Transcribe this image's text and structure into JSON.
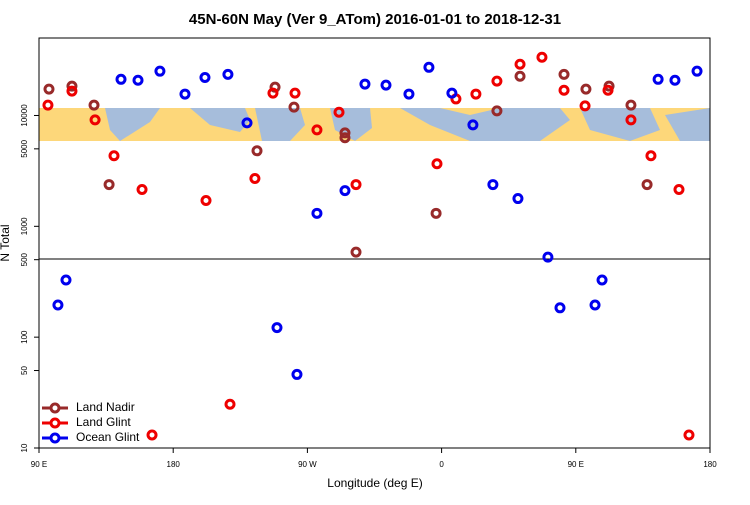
{
  "chart_data": {
    "type": "scatter",
    "title": "45N-60N May (Ver 9_ATom)   2016-01-01 to 2018-12-31",
    "x_label": "Longitude (deg E)",
    "y_label": "N Total",
    "xlim": [
      90,
      540
    ],
    "ylim": [
      10,
      50000
    ],
    "log_y": true,
    "legend": "lower left",
    "xticks": [
      {
        "value": 90,
        "label": "90 E"
      },
      {
        "value": 180,
        "label": "180"
      },
      {
        "value": 270,
        "label": "90 W"
      },
      {
        "value": 360,
        "label": "0"
      },
      {
        "value": 450,
        "label": "90 E"
      },
      {
        "value": 540,
        "label": "180"
      }
    ],
    "yticks": [
      10,
      50,
      100,
      500,
      1000,
      5000,
      10000
    ],
    "series": [
      {
        "name": "Land Nadir",
        "color": "#982a2a",
        "x": [
          96.7,
          112.1,
          126.9,
          137,
          248.3,
          236.2,
          261,
          295.2,
          295.2,
          302.6,
          356.3,
          397.1,
          412.6,
          442.1,
          456.8,
          472.3,
          487,
          497.8
        ],
        "values": [
          17300,
          18400,
          12400,
          2380,
          18000,
          4800,
          11900,
          6290,
          6970,
          585,
          1310,
          11000,
          22600,
          23500,
          17300,
          18400,
          12400,
          2380
        ]
      },
      {
        "name": "Land Glint",
        "color": "#ee0000",
        "x": [
          96,
          112.1,
          127.6,
          140.3,
          159.1,
          165.8,
          202,
          218.1,
          234.8,
          246.9,
          261.7,
          276.4,
          291.2,
          302.6,
          356.9,
          369.6,
          383,
          397.1,
          412.6,
          427.3,
          442.1,
          456.2,
          471.6,
          487,
          500.4,
          519.2,
          525.9
        ],
        "values": [
          12400,
          16600,
          9120,
          4330,
          2150,
          13.1,
          1710,
          24.8,
          2700,
          15900,
          15900,
          7410,
          10700,
          2380,
          3670,
          14100,
          15600,
          20400,
          29000,
          33500,
          16900,
          12200,
          16900,
          9120,
          4330,
          2150,
          13.1
        ]
      },
      {
        "name": "Ocean Glint",
        "color": "#0000ee",
        "x": [
          102.7,
          108.1,
          145,
          156.4,
          171.1,
          187.9,
          201.3,
          216.7,
          229.5,
          249.6,
          263,
          276.4,
          295.2,
          308.6,
          322.7,
          338.1,
          351.5,
          366.9,
          381,
          394.4,
          411.2,
          431.3,
          439.4,
          462.9,
          467.6,
          505.2,
          516.5,
          531.3
        ],
        "values": [
          195,
          328,
          21200,
          20800,
          25100,
          15600,
          22000,
          23500,
          8570,
          122,
          46.1,
          1310,
          2100,
          19200,
          18800,
          15600,
          27200,
          15900,
          8220,
          2380,
          1780,
          527,
          184,
          195,
          328,
          21200,
          20800,
          25100
        ]
      }
    ]
  }
}
